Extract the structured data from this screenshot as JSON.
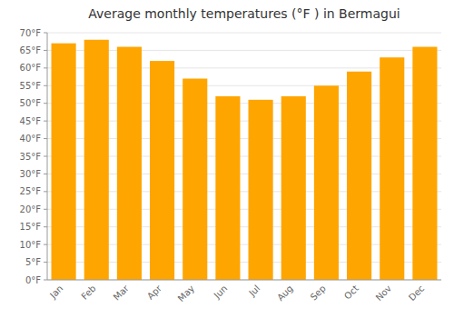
{
  "chart_data": {
    "type": "bar",
    "title": "Average monthly temperatures (°F ) in Bermagui",
    "categories": [
      "Jan",
      "Feb",
      "Mar",
      "Apr",
      "May",
      "Jun",
      "Jul",
      "Aug",
      "Sep",
      "Oct",
      "Nov",
      "Dec"
    ],
    "values": [
      67,
      68,
      66,
      62,
      57,
      52,
      51,
      52,
      55,
      59,
      63,
      66
    ],
    "color": "#FFA500",
    "ylim": [
      0,
      70
    ],
    "yticks": [
      {
        "value": 0,
        "label": "0°F"
      },
      {
        "value": 5,
        "label": "5°F"
      },
      {
        "value": 10,
        "label": "10°F"
      },
      {
        "value": 15,
        "label": "15°F"
      },
      {
        "value": 20,
        "label": "20°F"
      },
      {
        "value": 25,
        "label": "25°F"
      },
      {
        "value": 30,
        "label": "30°F"
      },
      {
        "value": 35,
        "label": "35°F"
      },
      {
        "value": 40,
        "label": "40°F"
      },
      {
        "value": 45,
        "label": "45°F"
      },
      {
        "value": 50,
        "label": "50°F"
      },
      {
        "value": 55,
        "label": "55°F"
      },
      {
        "value": 60,
        "label": "60°F"
      },
      {
        "value": 65,
        "label": "65°F"
      },
      {
        "value": 70,
        "label": "70°F"
      }
    ],
    "grid": true
  }
}
